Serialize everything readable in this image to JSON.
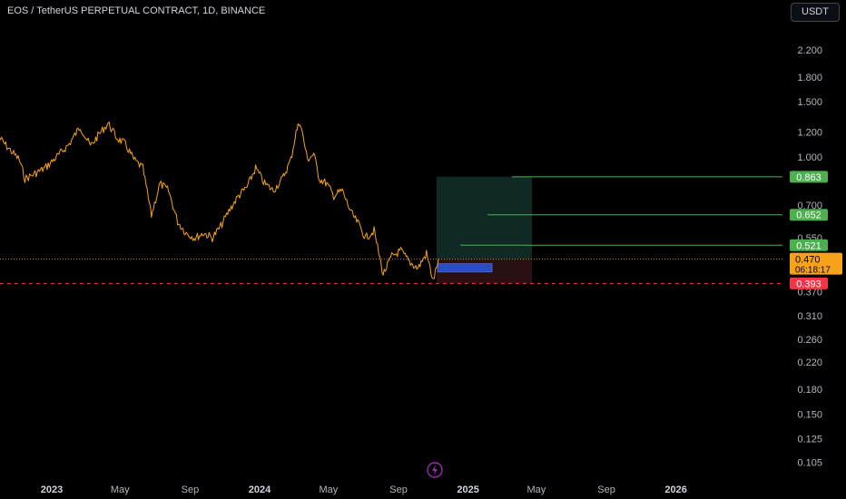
{
  "header": {
    "title": "EOS / TetherUS PERPETUAL CONTRACT, 1D, BINANCE",
    "currency_button": "USDT"
  },
  "chart_data": {
    "type": "line",
    "title": "EOS / TetherUS PERPETUAL CONTRACT, 1D, BINANCE",
    "y_scale": "log",
    "ylim": [
      0.098,
      2.6
    ],
    "y_ticks": [
      "2.200",
      "1.800",
      "1.500",
      "1.200",
      "1.000",
      "0.700",
      "0.550",
      "0.370",
      "0.310",
      "0.260",
      "0.220",
      "0.180",
      "0.150",
      "0.125",
      "0.105"
    ],
    "x_ticks": [
      "2023",
      "May",
      "Sep",
      "2024",
      "May",
      "Sep",
      "2025",
      "May",
      "Sep",
      "2026"
    ],
    "x_tick_bold": [
      "2023",
      "2024",
      "2025",
      "2026"
    ],
    "series": [
      {
        "color": "#f7a21b",
        "x": [
          "2022-10-01",
          "2022-10-20",
          "2022-11-05",
          "2022-11-15",
          "2022-12-01",
          "2022-12-20",
          "2023-01-10",
          "2023-02-01",
          "2023-02-20",
          "2023-03-10",
          "2023-03-25",
          "2023-04-10",
          "2023-04-25",
          "2023-05-10",
          "2023-05-25",
          "2023-06-10",
          "2023-06-25",
          "2023-07-10",
          "2023-07-25",
          "2023-08-10",
          "2023-08-25",
          "2023-09-10",
          "2023-09-25",
          "2023-10-10",
          "2023-10-25",
          "2023-11-10",
          "2023-11-25",
          "2023-12-10",
          "2023-12-25",
          "2024-01-10",
          "2024-01-25",
          "2024-02-10",
          "2024-02-25",
          "2024-03-05",
          "2024-03-12",
          "2024-03-25",
          "2024-04-05",
          "2024-04-15",
          "2024-04-28",
          "2024-05-10",
          "2024-05-25",
          "2024-06-10",
          "2024-06-25",
          "2024-07-05",
          "2024-07-20",
          "2024-08-05",
          "2024-08-20",
          "2024-09-05",
          "2024-09-20",
          "2024-10-05",
          "2024-10-20",
          "2024-11-01",
          "2024-11-10"
        ],
        "values": [
          1.15,
          1.05,
          0.98,
          0.85,
          0.88,
          0.92,
          1.0,
          1.1,
          1.25,
          1.08,
          1.18,
          1.28,
          1.15,
          1.1,
          0.98,
          0.92,
          0.65,
          0.82,
          0.78,
          0.62,
          0.57,
          0.55,
          0.57,
          0.55,
          0.6,
          0.68,
          0.75,
          0.8,
          0.92,
          0.82,
          0.78,
          0.85,
          0.98,
          1.2,
          1.3,
          0.98,
          1.02,
          0.85,
          0.82,
          0.75,
          0.78,
          0.66,
          0.6,
          0.55,
          0.58,
          0.42,
          0.48,
          0.5,
          0.46,
          0.44,
          0.49,
          0.4,
          0.47
        ]
      }
    ],
    "trade_setup": {
      "entry": 0.47,
      "stop": 0.393,
      "targets": [
        0.521,
        0.652,
        0.863
      ],
      "profit_color": "#0f2a24",
      "loss_color": "#2a0f13"
    }
  },
  "price_axis_labels": {
    "current_price": "0.470",
    "countdown": "06:18:17",
    "stop_label": "0.393",
    "target_labels": [
      "0.521",
      "0.652",
      "0.863"
    ]
  },
  "colors": {
    "background": "#000000",
    "series": "#f7a21b",
    "target_green": "#4caf50",
    "stop_red": "#f23645",
    "current_orange": "#f7a21b",
    "entry_blue": "#2962ff",
    "logo_purple": "#9c27b0"
  },
  "icons": {
    "logo": "lightning-bolt-icon"
  }
}
